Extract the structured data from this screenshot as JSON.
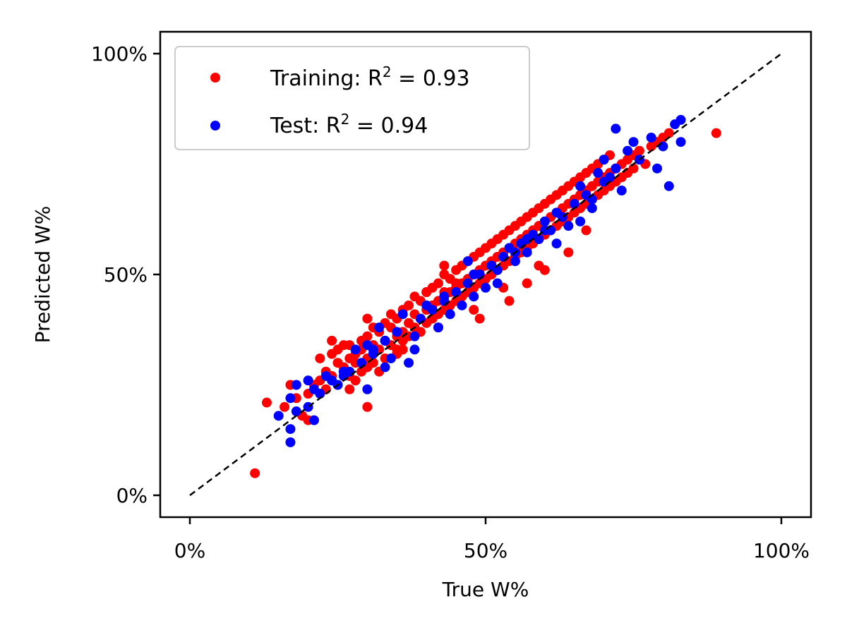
{
  "chart_data": {
    "type": "scatter",
    "xlabel": "True W%",
    "ylabel": "Predicted W%",
    "xlim": [
      -5,
      105
    ],
    "ylim": [
      -5,
      105
    ],
    "x_ticks": [
      0,
      50,
      100
    ],
    "y_ticks": [
      0,
      50,
      100
    ],
    "x_tick_labels": [
      "0%",
      "50%",
      "100%"
    ],
    "y_tick_labels": [
      "0%",
      "50%",
      "100%"
    ],
    "grid": false,
    "legend_position": "top-left",
    "reference_line": {
      "x": [
        0,
        100
      ],
      "y": [
        0,
        100
      ],
      "style": "dashed",
      "color": "#000000"
    },
    "series": [
      {
        "name": "Training",
        "r2_label": "0.93",
        "color": "#ff0000",
        "x": [
          11,
          13,
          16,
          17,
          18,
          19,
          20,
          20,
          21,
          22,
          22,
          23,
          23,
          24,
          24,
          25,
          25,
          25,
          26,
          26,
          26,
          27,
          27,
          27,
          28,
          28,
          28,
          29,
          29,
          29,
          30,
          30,
          30,
          31,
          31,
          31,
          32,
          32,
          32,
          33,
          33,
          33,
          34,
          34,
          34,
          35,
          35,
          35,
          36,
          36,
          36,
          37,
          37,
          37,
          38,
          38,
          38,
          39,
          39,
          39,
          40,
          40,
          40,
          41,
          41,
          41,
          42,
          42,
          42,
          43,
          43,
          43,
          44,
          44,
          44,
          45,
          45,
          45,
          46,
          46,
          46,
          47,
          47,
          47,
          48,
          48,
          48,
          49,
          49,
          49,
          50,
          50,
          50,
          51,
          51,
          51,
          52,
          52,
          52,
          53,
          53,
          53,
          54,
          54,
          54,
          55,
          55,
          55,
          56,
          56,
          56,
          57,
          57,
          57,
          58,
          58,
          58,
          59,
          59,
          59,
          60,
          60,
          60,
          61,
          61,
          61,
          62,
          62,
          62,
          63,
          63,
          63,
          64,
          64,
          64,
          65,
          65,
          65,
          66,
          66,
          66,
          67,
          67,
          67,
          68,
          68,
          68,
          69,
          69,
          69,
          70,
          70,
          70,
          71,
          71,
          71,
          72,
          72,
          73,
          73,
          74,
          74,
          75,
          75,
          76,
          77,
          78,
          79,
          80,
          81,
          89,
          30,
          35,
          40,
          43,
          45,
          49,
          54,
          57,
          60,
          64,
          30,
          42,
          48,
          53,
          59,
          67,
          43,
          27,
          24,
          36
        ],
        "y": [
          5,
          21,
          20,
          25,
          22,
          18,
          23,
          17,
          25,
          31,
          26,
          24,
          28,
          27,
          32,
          30,
          25,
          33,
          28,
          34,
          29,
          27,
          31,
          24,
          32,
          26,
          30,
          28,
          33,
          35,
          29,
          31,
          36,
          30,
          34,
          38,
          33,
          28,
          37,
          35,
          31,
          39,
          34,
          38,
          41,
          36,
          33,
          40,
          37,
          35,
          42,
          39,
          36,
          43,
          38,
          41,
          45,
          40,
          37,
          44,
          42,
          39,
          46,
          43,
          40,
          47,
          44,
          41,
          48,
          45,
          42,
          50,
          46,
          43,
          49,
          47,
          44,
          51,
          48,
          45,
          52,
          49,
          46,
          53,
          50,
          47,
          54,
          51,
          48,
          55,
          52,
          49,
          56,
          53,
          50,
          57,
          54,
          51,
          58,
          55,
          52,
          59,
          56,
          53,
          60,
          57,
          54,
          61,
          58,
          55,
          62,
          59,
          56,
          63,
          60,
          57,
          64,
          61,
          58,
          65,
          62,
          59,
          66,
          63,
          60,
          67,
          64,
          61,
          68,
          65,
          62,
          69,
          66,
          63,
          70,
          67,
          64,
          71,
          68,
          65,
          72,
          69,
          66,
          73,
          70,
          67,
          74,
          71,
          68,
          75,
          72,
          69,
          76,
          73,
          70,
          77,
          74,
          71,
          75,
          72,
          76,
          73,
          77,
          74,
          78,
          75,
          79,
          80,
          81,
          82,
          82,
          40,
          32,
          46,
          52,
          48,
          40,
          44,
          48,
          51,
          55,
          20,
          38,
          42,
          47,
          52,
          60,
          46,
          34,
          35,
          33
        ]
      },
      {
        "name": "Test",
        "r2_label": "0.94",
        "color": "#0000ff",
        "x": [
          15,
          17,
          17,
          17,
          18,
          18,
          20,
          20,
          21,
          21,
          22,
          23,
          24,
          25,
          26,
          27,
          28,
          29,
          30,
          30,
          31,
          32,
          33,
          33,
          34,
          35,
          36,
          37,
          38,
          38,
          39,
          40,
          41,
          42,
          43,
          44,
          45,
          46,
          47,
          47,
          48,
          49,
          50,
          51,
          52,
          53,
          54,
          55,
          56,
          57,
          58,
          59,
          60,
          61,
          62,
          63,
          64,
          65,
          66,
          67,
          68,
          69,
          70,
          70,
          71,
          72,
          72,
          73,
          74,
          75,
          76,
          78,
          79,
          80,
          81,
          82,
          83,
          83,
          55,
          57,
          60,
          52,
          48,
          43,
          62,
          66,
          68,
          31,
          26
        ],
        "y": [
          18,
          12,
          15,
          22,
          19,
          25,
          20,
          26,
          24,
          17,
          23,
          27,
          26,
          25,
          27,
          28,
          33,
          30,
          34,
          24,
          32,
          38,
          35,
          29,
          31,
          37,
          41,
          30,
          36,
          33,
          40,
          43,
          42,
          38,
          44,
          41,
          46,
          43,
          48,
          53,
          45,
          50,
          47,
          52,
          51,
          54,
          56,
          53,
          57,
          55,
          59,
          58,
          62,
          60,
          64,
          63,
          61,
          66,
          70,
          68,
          67,
          73,
          71,
          76,
          72,
          74,
          83,
          69,
          78,
          80,
          76,
          81,
          74,
          79,
          70,
          84,
          85,
          80,
          55,
          58,
          60,
          48,
          50,
          45,
          57,
          62,
          65,
          33,
          28
        ]
      }
    ]
  }
}
